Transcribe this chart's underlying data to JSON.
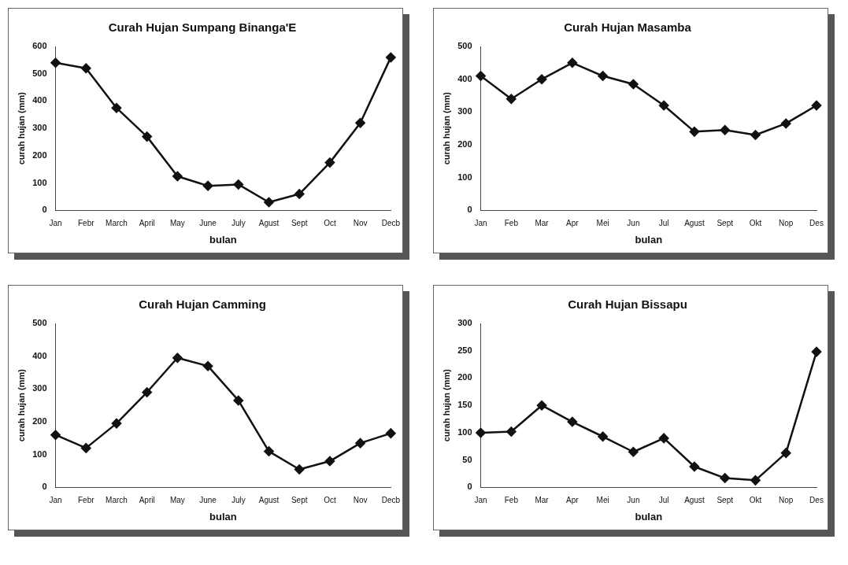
{
  "chart_data": [
    {
      "type": "line",
      "title": "Curah Hujan Sumpang Binanga'E",
      "xlabel": "bulan",
      "ylabel": "curah hujan (mm)",
      "categories": [
        "Jan",
        "Febr",
        "March",
        "April",
        "May",
        "June",
        "July",
        "Agust",
        "Sept",
        "Oct",
        "Nov",
        "Decb"
      ],
      "series": [
        {
          "color": "#111111",
          "values": [
            540,
            520,
            375,
            270,
            125,
            90,
            95,
            30,
            60,
            175,
            320,
            560
          ]
        }
      ],
      "ylim": [
        0,
        600
      ],
      "yticks": [
        0,
        100,
        200,
        300,
        400,
        500,
        600
      ],
      "marker": "diamond",
      "line_style": "solid",
      "grid": false,
      "legend": false
    },
    {
      "type": "line",
      "title": "Curah Hujan Masamba",
      "xlabel": "bulan",
      "ylabel": "curah hujan (mm)",
      "categories": [
        "Jan",
        "Feb",
        "Mar",
        "Apr",
        "Mei",
        "Jun",
        "Jul",
        "Agust",
        "Sept",
        "Okt",
        "Nop",
        "Des"
      ],
      "series": [
        {
          "color": "#111111",
          "values": [
            410,
            340,
            400,
            450,
            410,
            385,
            320,
            240,
            245,
            230,
            265,
            320
          ]
        }
      ],
      "ylim": [
        0,
        500
      ],
      "yticks": [
        0,
        100,
        200,
        300,
        400,
        500
      ],
      "marker": "diamond",
      "line_style": "solid",
      "grid": false,
      "legend": false
    },
    {
      "type": "line",
      "title": "Curah Hujan Camming",
      "xlabel": "bulan",
      "ylabel": "curah hujan (mm)",
      "categories": [
        "Jan",
        "Febr",
        "March",
        "April",
        "May",
        "June",
        "July",
        "Agust",
        "Sept",
        "Oct",
        "Nov",
        "Decb"
      ],
      "series": [
        {
          "color": "#111111",
          "values": [
            160,
            120,
            195,
            290,
            395,
            370,
            265,
            110,
            55,
            80,
            135,
            165
          ]
        }
      ],
      "ylim": [
        0,
        500
      ],
      "yticks": [
        0,
        100,
        200,
        300,
        400,
        500
      ],
      "marker": "diamond",
      "line_style": "solid",
      "grid": false,
      "legend": false
    },
    {
      "type": "line",
      "title": "Curah Hujan Bissapu",
      "xlabel": "bulan",
      "ylabel": "curah hujan (mm)",
      "categories": [
        "Jan",
        "Feb",
        "Mar",
        "Apr",
        "Mei",
        "Jun",
        "Jul",
        "Agust",
        "Sept",
        "Okt",
        "Nop",
        "Des"
      ],
      "series": [
        {
          "color": "#111111",
          "values": [
            100,
            102,
            150,
            120,
            93,
            65,
            90,
            38,
            17,
            13,
            63,
            248
          ]
        }
      ],
      "ylim": [
        0,
        300
      ],
      "yticks": [
        0,
        50,
        100,
        150,
        200,
        250,
        300
      ],
      "marker": "diamond",
      "line_style": "solid",
      "grid": false,
      "legend": false
    }
  ]
}
